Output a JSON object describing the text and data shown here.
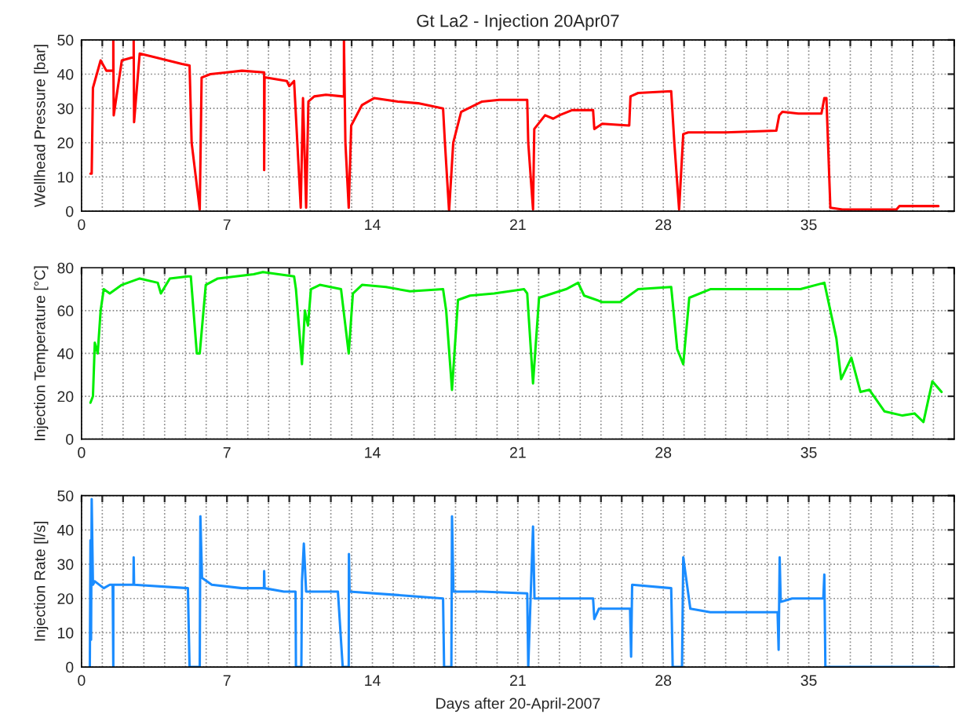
{
  "chart_data": [
    {
      "type": "line",
      "title": "Gt La2 - Injection 20Apr07",
      "ylabel": "Wellhead Pressure [bar]",
      "xlim": [
        0,
        42
      ],
      "ylim": [
        0,
        50
      ],
      "yticks": [
        0,
        10,
        20,
        30,
        40,
        50
      ],
      "grid": true,
      "line_style": "solid",
      "marker": "none",
      "xticks": [
        0,
        {
          "value": 1,
          "label": null
        },
        {
          "value": 2,
          "label": null
        },
        {
          "value": 3,
          "label": null
        },
        {
          "value": 4,
          "label": null
        },
        {
          "value": 5,
          "label": null
        },
        {
          "value": 6,
          "label": null
        },
        7,
        {
          "value": 8,
          "label": null
        },
        {
          "value": 9,
          "label": null
        },
        {
          "value": 10,
          "label": null
        },
        {
          "value": 11,
          "label": null
        },
        {
          "value": 12,
          "label": null
        },
        {
          "value": 13,
          "label": null
        },
        14,
        {
          "value": 15,
          "label": null
        },
        {
          "value": 16,
          "label": null
        },
        {
          "value": 17,
          "label": null
        },
        {
          "value": 18,
          "label": null
        },
        {
          "value": 19,
          "label": null
        },
        {
          "value": 20,
          "label": null
        },
        21,
        {
          "value": 22,
          "label": null
        },
        {
          "value": 23,
          "label": null
        },
        {
          "value": 24,
          "label": null
        },
        {
          "value": 25,
          "label": null
        },
        {
          "value": 26,
          "label": null
        },
        {
          "value": 27,
          "label": null
        },
        28,
        {
          "value": 29,
          "label": null
        },
        {
          "value": 30,
          "label": null
        },
        {
          "value": 31,
          "label": null
        },
        {
          "value": 32,
          "label": null
        },
        {
          "value": 33,
          "label": null
        },
        {
          "value": 34,
          "label": null
        },
        35,
        {
          "value": 36,
          "label": null
        },
        {
          "value": 37,
          "label": null
        },
        {
          "value": 38,
          "label": null
        },
        {
          "value": 39,
          "label": null
        },
        {
          "value": 40,
          "label": null
        },
        {
          "value": 41,
          "label": null
        },
        {
          "value": 42,
          "label": null
        }
      ],
      "series": [
        {
          "color": "#ff0000",
          "x": [
            0.43,
            0.49,
            0.55,
            0.92,
            1.2,
            1.53,
            1.53,
            1.55,
            1.94,
            2.51,
            2.51,
            2.53,
            2.8,
            3.5,
            4.83,
            5.2,
            5.3,
            5.69,
            5.78,
            6.2,
            7.0,
            7.72,
            8.79,
            8.79,
            8.81,
            8.87,
            9.88,
            10.0,
            10.23,
            10.3,
            10.55,
            10.66,
            10.72,
            10.81,
            10.92,
            11.2,
            11.76,
            12.57,
            12.63,
            12.63,
            12.7,
            12.86,
            12.98,
            13.5,
            14.08,
            15.23,
            16.2,
            17.4,
            17.49,
            17.69,
            17.89,
            18.27,
            19.28,
            20.1,
            21.45,
            21.5,
            21.73,
            21.79,
            22.31,
            22.7,
            23.0,
            23.61,
            24.62,
            24.68,
            25.06,
            26.36,
            26.42,
            26.79,
            28.38,
            28.53,
            28.76,
            28.96,
            29.2,
            31.0,
            33.44,
            33.58,
            33.73,
            34.5,
            35.61,
            35.75,
            35.85,
            36.04,
            36.62,
            39.22,
            39.36,
            41.24
          ],
          "values": [
            11,
            11,
            36,
            44,
            41,
            41,
            50,
            28,
            44,
            45,
            50,
            26,
            46,
            45,
            43,
            42.5,
            20,
            0.5,
            39,
            40,
            40.5,
            41,
            40.5,
            12,
            39,
            39,
            38,
            36.5,
            38,
            30,
            1,
            33,
            20,
            1,
            32,
            33.5,
            34,
            33.5,
            33.5,
            50,
            20,
            1,
            25,
            31,
            33,
            32,
            31.5,
            30,
            20,
            0,
            20,
            29,
            32,
            32.5,
            32.5,
            20,
            0.5,
            24,
            28,
            27,
            28,
            29.5,
            29.5,
            24,
            25.5,
            25,
            33.5,
            34.5,
            35,
            20,
            0.5,
            22.5,
            23,
            23,
            23.5,
            28,
            29,
            28.5,
            28.5,
            33,
            33,
            1,
            0.5,
            0.5,
            1.5,
            1.5
          ]
        }
      ]
    },
    {
      "type": "line",
      "ylabel": "Injection Temperature [°C]",
      "xlim": [
        0,
        42
      ],
      "ylim": [
        0,
        80
      ],
      "yticks": [
        0,
        20,
        40,
        60,
        80
      ],
      "grid": true,
      "line_style": "solid",
      "marker": "none",
      "xticks": [
        0,
        {
          "value": 1,
          "label": null
        },
        {
          "value": 2,
          "label": null
        },
        {
          "value": 3,
          "label": null
        },
        {
          "value": 4,
          "label": null
        },
        {
          "value": 5,
          "label": null
        },
        {
          "value": 6,
          "label": null
        },
        7,
        {
          "value": 8,
          "label": null
        },
        {
          "value": 9,
          "label": null
        },
        {
          "value": 10,
          "label": null
        },
        {
          "value": 11,
          "label": null
        },
        {
          "value": 12,
          "label": null
        },
        {
          "value": 13,
          "label": null
        },
        14,
        {
          "value": 15,
          "label": null
        },
        {
          "value": 16,
          "label": null
        },
        {
          "value": 17,
          "label": null
        },
        {
          "value": 18,
          "label": null
        },
        {
          "value": 19,
          "label": null
        },
        {
          "value": 20,
          "label": null
        },
        21,
        {
          "value": 22,
          "label": null
        },
        {
          "value": 23,
          "label": null
        },
        {
          "value": 24,
          "label": null
        },
        {
          "value": 25,
          "label": null
        },
        {
          "value": 26,
          "label": null
        },
        {
          "value": 27,
          "label": null
        },
        28,
        {
          "value": 29,
          "label": null
        },
        {
          "value": 30,
          "label": null
        },
        {
          "value": 31,
          "label": null
        },
        {
          "value": 32,
          "label": null
        },
        {
          "value": 33,
          "label": null
        },
        {
          "value": 34,
          "label": null
        },
        35,
        {
          "value": 36,
          "label": null
        },
        {
          "value": 37,
          "label": null
        },
        {
          "value": 38,
          "label": null
        },
        {
          "value": 39,
          "label": null
        },
        {
          "value": 40,
          "label": null
        },
        {
          "value": 41,
          "label": null
        },
        {
          "value": 42,
          "label": null
        }
      ],
      "series": [
        {
          "color": "#00ee00",
          "x": [
            0.43,
            0.55,
            0.64,
            0.78,
            0.92,
            1.07,
            1.36,
            1.94,
            2.8,
            3.67,
            3.82,
            4.25,
            5.12,
            5.26,
            5.55,
            5.69,
            5.98,
            6.56,
            8.29,
            8.73,
            10.23,
            10.32,
            10.61,
            10.75,
            10.9,
            11.04,
            11.47,
            12.49,
            12.86,
            13.06,
            13.5,
            14.65,
            15.81,
            17.4,
            17.55,
            17.83,
            18.12,
            18.7,
            19.86,
            21.3,
            21.45,
            21.73,
            22.02,
            23.32,
            23.9,
            24.19,
            25.06,
            25.92,
            26.79,
            28.38,
            28.67,
            28.96,
            29.25,
            30.26,
            32.57,
            34.6,
            35.75,
            36.33,
            36.56,
            37.05,
            37.49,
            37.92,
            38.64,
            39.51,
            40.09,
            40.52,
            40.95,
            41.39
          ],
          "values": [
            17,
            20,
            45,
            40,
            60,
            70,
            68,
            72,
            75,
            73,
            68,
            75,
            76,
            76,
            40,
            40,
            72,
            75,
            77,
            78,
            76,
            70,
            35,
            60,
            53,
            70,
            72,
            70,
            40,
            68,
            72,
            71,
            69,
            70,
            60,
            23,
            65,
            67,
            68,
            70,
            68,
            26,
            66,
            70,
            73,
            67,
            64,
            64,
            70,
            71,
            42,
            35,
            66,
            70,
            70,
            70,
            73,
            47,
            28,
            38,
            22,
            23,
            13,
            11,
            12,
            8,
            27,
            22
          ]
        }
      ]
    },
    {
      "type": "line",
      "ylabel": "Injection Rate [l/s]",
      "xlabel": "Days after 20-April-2007",
      "xlim": [
        0,
        42
      ],
      "ylim": [
        0,
        50
      ],
      "yticks": [
        0,
        10,
        20,
        30,
        40,
        50
      ],
      "grid": true,
      "line_style": "solid",
      "marker": "none",
      "xticks": [
        0,
        {
          "value": 1,
          "label": null
        },
        {
          "value": 2,
          "label": null
        },
        {
          "value": 3,
          "label": null
        },
        {
          "value": 4,
          "label": null
        },
        {
          "value": 5,
          "label": null
        },
        {
          "value": 6,
          "label": null
        },
        7,
        {
          "value": 8,
          "label": null
        },
        {
          "value": 9,
          "label": null
        },
        {
          "value": 10,
          "label": null
        },
        {
          "value": 11,
          "label": null
        },
        {
          "value": 12,
          "label": null
        },
        {
          "value": 13,
          "label": null
        },
        14,
        {
          "value": 15,
          "label": null
        },
        {
          "value": 16,
          "label": null
        },
        {
          "value": 17,
          "label": null
        },
        {
          "value": 18,
          "label": null
        },
        {
          "value": 19,
          "label": null
        },
        {
          "value": 20,
          "label": null
        },
        21,
        {
          "value": 22,
          "label": null
        },
        {
          "value": 23,
          "label": null
        },
        {
          "value": 24,
          "label": null
        },
        {
          "value": 25,
          "label": null
        },
        {
          "value": 26,
          "label": null
        },
        {
          "value": 27,
          "label": null
        },
        28,
        {
          "value": 29,
          "label": null
        },
        {
          "value": 30,
          "label": null
        },
        {
          "value": 31,
          "label": null
        },
        {
          "value": 32,
          "label": null
        },
        {
          "value": 33,
          "label": null
        },
        {
          "value": 34,
          "label": null
        },
        35,
        {
          "value": 36,
          "label": null
        },
        {
          "value": 37,
          "label": null
        },
        {
          "value": 38,
          "label": null
        },
        {
          "value": 39,
          "label": null
        },
        {
          "value": 40,
          "label": null
        },
        {
          "value": 41,
          "label": null
        },
        {
          "value": 42,
          "label": null
        }
      ],
      "series": [
        {
          "color": "#1a8cff",
          "x": [
            0.4,
            0.43,
            0.46,
            0.49,
            0.55,
            0.64,
            1.07,
            1.36,
            1.5,
            1.53,
            1.53,
            1.56,
            2.5,
            2.51,
            2.53,
            5.12,
            5.2,
            5.69,
            5.72,
            5.8,
            6.27,
            7.72,
            8.78,
            8.79,
            8.81,
            9.74,
            10.3,
            10.32,
            10.58,
            10.61,
            10.7,
            10.81,
            10.85,
            12.34,
            12.57,
            12.86,
            12.87,
            12.9,
            15.23,
            17.4,
            17.45,
            17.8,
            17.83,
            17.9,
            19.28,
            21.45,
            21.5,
            21.73,
            21.8,
            22.75,
            24.62,
            24.68,
            24.9,
            26.4,
            26.45,
            26.5,
            28.38,
            28.45,
            28.9,
            28.96,
            29.3,
            30.26,
            33.5,
            33.55,
            33.6,
            33.65,
            34.2,
            35.7,
            35.75,
            35.8,
            41.24
          ],
          "values": [
            0,
            37,
            8,
            49,
            24,
            25,
            23,
            24,
            24,
            0,
            24,
            24,
            24,
            32,
            24,
            23,
            0,
            0,
            44,
            26,
            24,
            23,
            23,
            28,
            23,
            22,
            22,
            0,
            0,
            25,
            36,
            22,
            22,
            22,
            0,
            0,
            33,
            22,
            21,
            20,
            0,
            0,
            44,
            22,
            22,
            21.5,
            0,
            41,
            20,
            20,
            20,
            14,
            17,
            17,
            3,
            24,
            23,
            0,
            0,
            32,
            17,
            16,
            16,
            5,
            32,
            19,
            20,
            20,
            27,
            0,
            0
          ]
        }
      ]
    }
  ]
}
